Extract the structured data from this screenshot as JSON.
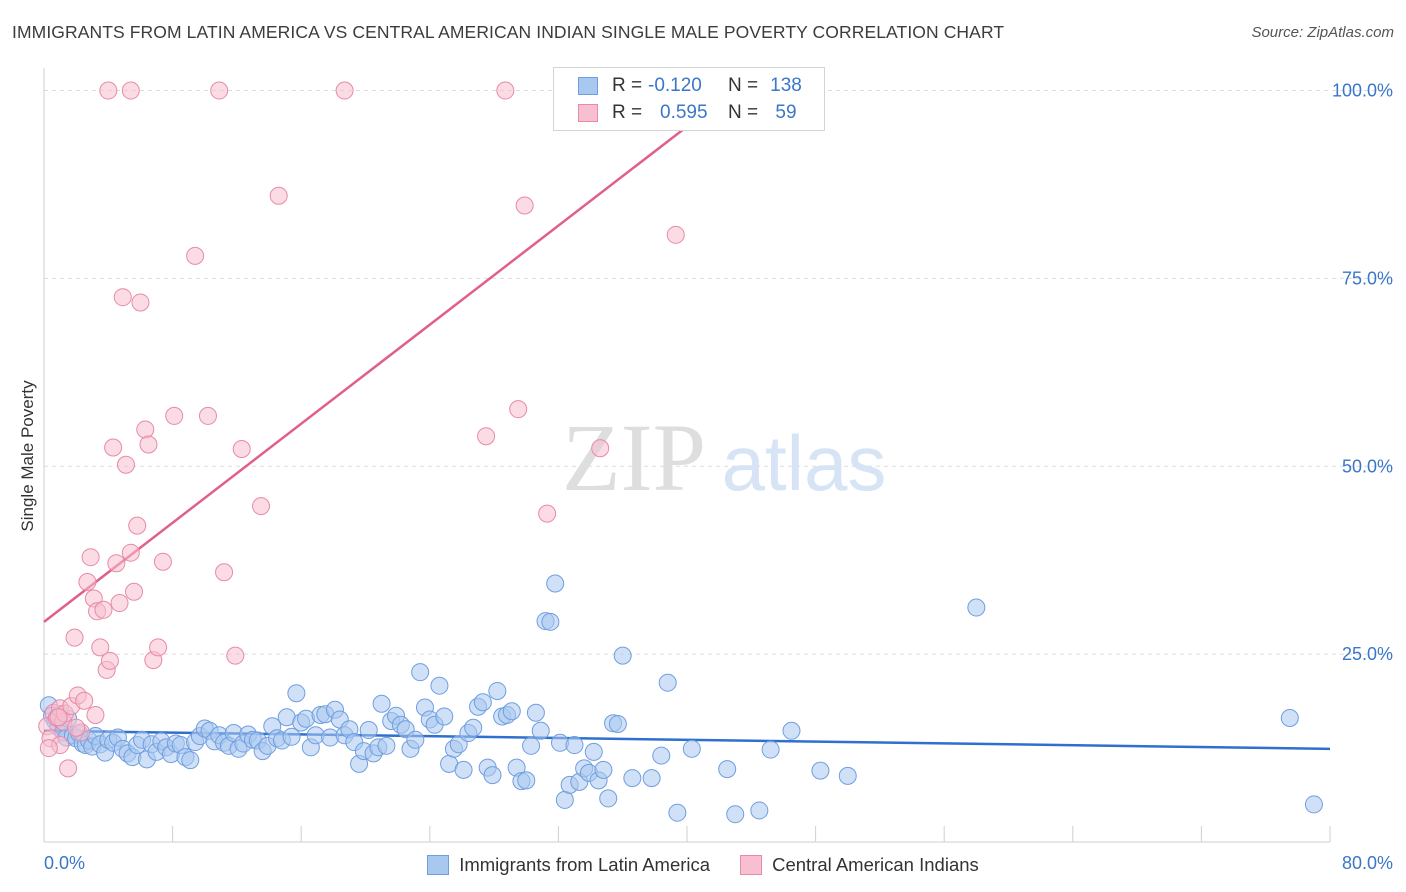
{
  "header": {
    "title": "IMMIGRANTS FROM LATIN AMERICA VS CENTRAL AMERICAN INDIAN SINGLE MALE POVERTY CORRELATION CHART",
    "source": "Source: ZipAtlas.com"
  },
  "watermark": {
    "zip": "ZIP",
    "atlas": "atlas"
  },
  "legend": {
    "rows": [
      {
        "r_label": "R =",
        "r_value": "-0.120",
        "n_label": "N =",
        "n_value": "138",
        "color": "#a9c8f0",
        "border": "#6f9ee0"
      },
      {
        "r_label": "R =",
        "r_value": "0.595",
        "n_label": "N =",
        "n_value": "59",
        "color": "#f7bfd0",
        "border": "#e88aa8"
      }
    ]
  },
  "bottom_legend": {
    "series1": "Immigrants from Latin America",
    "series2": "Central American Indians"
  },
  "chart_data": {
    "type": "scatter",
    "title": "IMMIGRANTS FROM LATIN AMERICA VS CENTRAL AMERICAN INDIAN SINGLE MALE POVERTY CORRELATION CHART",
    "xlabel": "",
    "ylabel": "Single Male Poverty",
    "xlim": [
      0,
      80
    ],
    "ylim": [
      0,
      103
    ],
    "x_tick_labels": [
      {
        "value": 0,
        "label": "0.0%"
      },
      {
        "value": 80,
        "label": "80.0%"
      }
    ],
    "y_tick_labels": [
      {
        "value": 25,
        "label": "25.0%"
      },
      {
        "value": 50,
        "label": "50.0%"
      },
      {
        "value": 75,
        "label": "75.0%"
      },
      {
        "value": 100,
        "label": "100.0%"
      }
    ],
    "grid": "horizontal dashed",
    "legend_position": "top-center",
    "series": [
      {
        "name": "Immigrants from Latin America",
        "color": "#6f9ee0",
        "fill": "#a9c8f0",
        "trend": {
          "x": [
            0,
            80
          ],
          "y": [
            14.8,
            12.4
          ],
          "color": "#2f6fcf"
        },
        "points": [
          [
            0.3,
            18.2
          ],
          [
            0.5,
            16.8
          ],
          [
            0.7,
            16.1
          ],
          [
            0.9,
            15.3
          ],
          [
            1.0,
            17.0
          ],
          [
            1.2,
            14.6
          ],
          [
            1.4,
            13.9
          ],
          [
            1.5,
            16.4
          ],
          [
            1.8,
            14.2
          ],
          [
            2.0,
            13.8
          ],
          [
            2.2,
            14.4
          ],
          [
            2.4,
            13.1
          ],
          [
            2.6,
            12.9
          ],
          [
            2.8,
            13.5
          ],
          [
            3.0,
            12.7
          ],
          [
            3.2,
            14.1
          ],
          [
            3.5,
            13.0
          ],
          [
            3.8,
            11.9
          ],
          [
            4.0,
            13.6
          ],
          [
            4.3,
            13.2
          ],
          [
            4.6,
            13.9
          ],
          [
            4.9,
            12.4
          ],
          [
            5.2,
            11.8
          ],
          [
            5.5,
            11.3
          ],
          [
            5.8,
            12.9
          ],
          [
            6.1,
            13.6
          ],
          [
            6.4,
            11.0
          ],
          [
            6.7,
            13.0
          ],
          [
            7.0,
            12.0
          ],
          [
            7.3,
            13.4
          ],
          [
            7.6,
            12.6
          ],
          [
            7.9,
            11.7
          ],
          [
            8.2,
            13.1
          ],
          [
            8.5,
            12.9
          ],
          [
            8.8,
            11.3
          ],
          [
            9.1,
            10.9
          ],
          [
            9.4,
            13.3
          ],
          [
            9.7,
            14.1
          ],
          [
            10.0,
            15.1
          ],
          [
            10.3,
            14.8
          ],
          [
            10.6,
            13.4
          ],
          [
            10.9,
            14.2
          ],
          [
            11.2,
            13.2
          ],
          [
            11.5,
            12.8
          ],
          [
            11.8,
            14.5
          ],
          [
            12.1,
            12.4
          ],
          [
            12.4,
            13.1
          ],
          [
            12.7,
            14.3
          ],
          [
            13.0,
            13.6
          ],
          [
            13.3,
            13.5
          ],
          [
            13.6,
            12.1
          ],
          [
            13.9,
            12.8
          ],
          [
            14.2,
            15.4
          ],
          [
            14.5,
            13.8
          ],
          [
            14.8,
            13.5
          ],
          [
            15.1,
            16.6
          ],
          [
            15.4,
            14.0
          ],
          [
            15.7,
            19.8
          ],
          [
            16.0,
            15.9
          ],
          [
            16.3,
            16.4
          ],
          [
            16.6,
            12.6
          ],
          [
            16.9,
            14.2
          ],
          [
            17.2,
            16.9
          ],
          [
            17.5,
            17.0
          ],
          [
            17.8,
            13.9
          ],
          [
            18.1,
            17.6
          ],
          [
            18.4,
            16.3
          ],
          [
            18.7,
            14.2
          ],
          [
            19.0,
            15.0
          ],
          [
            19.3,
            13.3
          ],
          [
            19.6,
            10.4
          ],
          [
            19.9,
            12.1
          ],
          [
            20.2,
            14.9
          ],
          [
            20.5,
            11.8
          ],
          [
            20.8,
            12.6
          ],
          [
            21.0,
            18.4
          ],
          [
            21.3,
            12.8
          ],
          [
            21.6,
            16.1
          ],
          [
            21.9,
            16.8
          ],
          [
            22.2,
            15.6
          ],
          [
            22.5,
            15.0
          ],
          [
            22.8,
            12.4
          ],
          [
            23.1,
            13.6
          ],
          [
            23.4,
            22.6
          ],
          [
            23.7,
            17.9
          ],
          [
            24.0,
            16.3
          ],
          [
            24.3,
            15.6
          ],
          [
            24.6,
            20.8
          ],
          [
            24.9,
            16.7
          ],
          [
            25.2,
            10.4
          ],
          [
            25.5,
            12.4
          ],
          [
            25.8,
            13.0
          ],
          [
            26.1,
            9.6
          ],
          [
            26.4,
            14.5
          ],
          [
            26.7,
            15.2
          ],
          [
            27.0,
            18.0
          ],
          [
            27.3,
            18.6
          ],
          [
            27.6,
            9.9
          ],
          [
            27.9,
            8.9
          ],
          [
            28.2,
            20.1
          ],
          [
            28.5,
            16.7
          ],
          [
            28.8,
            16.9
          ],
          [
            29.1,
            17.4
          ],
          [
            29.4,
            9.9
          ],
          [
            29.7,
            8.1
          ],
          [
            30.0,
            8.2
          ],
          [
            30.3,
            12.8
          ],
          [
            30.6,
            17.2
          ],
          [
            30.9,
            14.8
          ],
          [
            31.2,
            29.4
          ],
          [
            31.5,
            29.3
          ],
          [
            31.8,
            34.4
          ],
          [
            32.1,
            13.2
          ],
          [
            32.4,
            5.6
          ],
          [
            32.7,
            7.6
          ],
          [
            33.0,
            12.9
          ],
          [
            33.3,
            8.0
          ],
          [
            33.6,
            9.8
          ],
          [
            33.9,
            9.2
          ],
          [
            34.2,
            12.0
          ],
          [
            34.5,
            8.2
          ],
          [
            34.8,
            9.6
          ],
          [
            35.1,
            5.8
          ],
          [
            35.4,
            15.8
          ],
          [
            35.7,
            15.7
          ],
          [
            36.0,
            24.8
          ],
          [
            36.6,
            8.5
          ],
          [
            37.8,
            8.5
          ],
          [
            38.4,
            11.5
          ],
          [
            38.8,
            21.2
          ],
          [
            39.4,
            3.9
          ],
          [
            40.3,
            12.4
          ],
          [
            42.5,
            9.7
          ],
          [
            43.0,
            3.7
          ],
          [
            44.5,
            4.2
          ],
          [
            45.2,
            12.3
          ],
          [
            46.5,
            14.8
          ],
          [
            48.3,
            9.5
          ],
          [
            50.0,
            8.8
          ],
          [
            58.0,
            31.2
          ],
          [
            77.5,
            16.5
          ],
          [
            79.0,
            5.0
          ]
        ]
      },
      {
        "name": "Central American Indians",
        "color": "#e88aa8",
        "fill": "#f7bfd0",
        "trend": {
          "x": [
            0,
            40.3
          ],
          "y": [
            29.3,
            95.7
          ],
          "color": "#e0608a"
        },
        "points": [
          [
            0.2,
            15.4
          ],
          [
            0.4,
            13.8
          ],
          [
            0.6,
            17.2
          ],
          [
            0.8,
            16.5
          ],
          [
            1.0,
            17.8
          ],
          [
            1.2,
            16.0
          ],
          [
            1.3,
            17.1
          ],
          [
            1.5,
            9.8
          ],
          [
            1.7,
            18.1
          ],
          [
            1.9,
            27.2
          ],
          [
            2.1,
            19.5
          ],
          [
            2.3,
            14.6
          ],
          [
            2.5,
            18.8
          ],
          [
            2.7,
            34.6
          ],
          [
            2.9,
            37.9
          ],
          [
            3.1,
            32.4
          ],
          [
            3.3,
            30.7
          ],
          [
            3.5,
            25.9
          ],
          [
            3.7,
            30.9
          ],
          [
            3.9,
            22.9
          ],
          [
            4.1,
            24.1
          ],
          [
            4.3,
            52.5
          ],
          [
            4.5,
            37.1
          ],
          [
            4.7,
            31.8
          ],
          [
            4.9,
            72.5
          ],
          [
            5.1,
            50.2
          ],
          [
            5.4,
            38.5
          ],
          [
            5.6,
            33.3
          ],
          [
            5.8,
            42.1
          ],
          [
            6.0,
            71.8
          ],
          [
            6.3,
            54.9
          ],
          [
            6.5,
            52.9
          ],
          [
            6.8,
            24.2
          ],
          [
            7.1,
            25.9
          ],
          [
            7.4,
            37.3
          ],
          [
            8.1,
            56.7
          ],
          [
            9.4,
            78.0
          ],
          [
            10.2,
            56.7
          ],
          [
            11.2,
            35.9
          ],
          [
            11.9,
            24.8
          ],
          [
            12.3,
            52.3
          ],
          [
            13.5,
            44.7
          ],
          [
            14.6,
            86.0
          ],
          [
            5.4,
            100.0
          ],
          [
            4.0,
            100.0
          ],
          [
            10.9,
            100.0
          ],
          [
            18.7,
            100.0
          ],
          [
            28.7,
            100.0
          ],
          [
            27.5,
            54.0
          ],
          [
            29.5,
            57.6
          ],
          [
            29.9,
            84.7
          ],
          [
            31.3,
            43.7
          ],
          [
            34.6,
            52.4
          ],
          [
            39.3,
            80.8
          ],
          [
            1.0,
            12.9
          ],
          [
            0.3,
            12.5
          ],
          [
            2.0,
            15.2
          ],
          [
            3.2,
            16.9
          ],
          [
            0.9,
            16.6
          ]
        ]
      }
    ]
  }
}
